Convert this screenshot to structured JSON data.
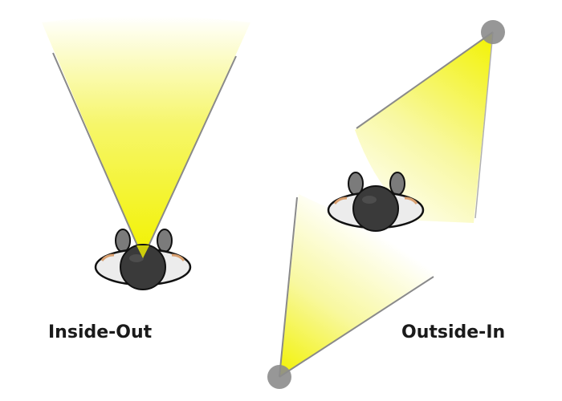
{
  "labels": {
    "inside_out": "Inside-Out",
    "outside_in": "Outside-In"
  },
  "colors": {
    "beam": "#f2f200",
    "beam_fade": "#ffffff",
    "beam_edge": "#9a9a9a",
    "sensor": "#8c8c8c",
    "head": "#3a3a3a",
    "shoulders": "#ececec",
    "outline": "#111111",
    "hands": "#7b7b7b",
    "skin": "#e8c39a"
  }
}
